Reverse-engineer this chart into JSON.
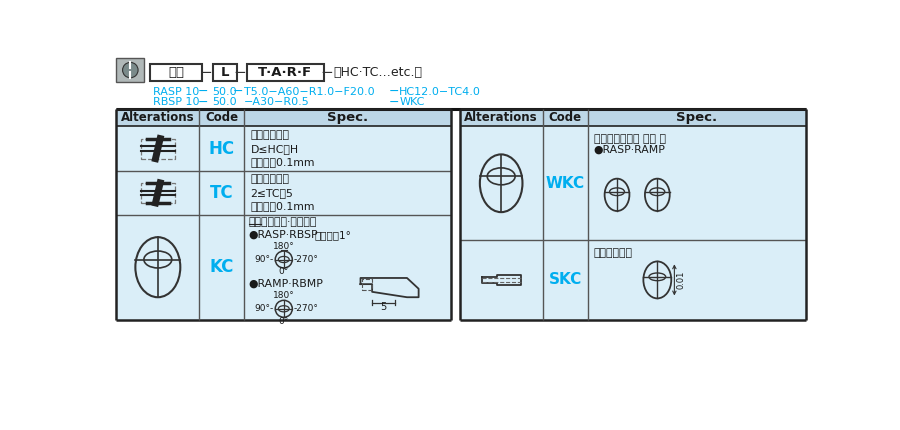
{
  "bg_color": "#ffffff",
  "light_blue": "#daeef8",
  "header_bg": "#bdd7e7",
  "cyan_text": "#00aeef",
  "dark_text": "#1a1a1a",
  "border_color": "#222222",
  "figw": 9.0,
  "figh": 4.3,
  "dpi": 100,
  "spec_HC": [
    "变更凸缘直径",
    "D≤HC＜H",
    "指定单位0.1mm"
  ],
  "spec_TC": [
    "变更凸缘厚度",
    "2≤TC＜5",
    "指定单位0.1mm"
  ],
  "spec_KC_line1": "止回单面加工·变更位置",
  "spec_KC_rasp": "●RASP·RBSP",
  "spec_KC_unit": "指定单位1°",
  "spec_KC_ramp": "●RAMP·RBMP",
  "spec_WKC_line1": "止回平行加工（ 双面 ）",
  "spec_WKC_line2": "●RASP·RAMP",
  "spec_SKC": "杆部平面加工"
}
